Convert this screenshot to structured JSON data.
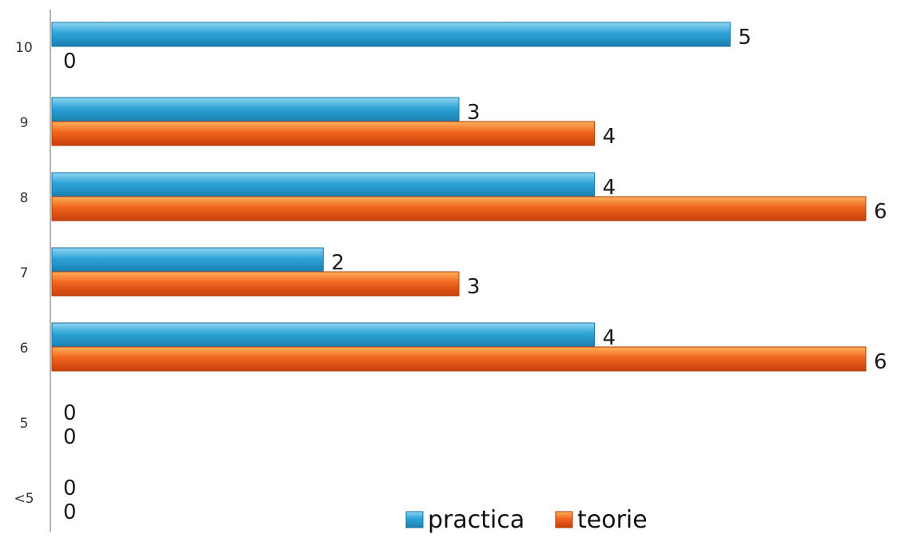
{
  "chart_data": {
    "type": "bar",
    "orientation": "horizontal",
    "categories": [
      "10",
      "9",
      "8",
      "7",
      "6",
      "5",
      "<5"
    ],
    "series": [
      {
        "name": "practica",
        "values": [
          5,
          3,
          4,
          2,
          4,
          0,
          0
        ],
        "color": "#2ea3d6"
      },
      {
        "name": "teorie",
        "values": [
          0,
          4,
          6,
          3,
          6,
          0,
          0
        ],
        "color": "#f0641e"
      }
    ],
    "xlim": [
      0,
      6
    ],
    "grid": false,
    "legend_position": "bottom-right",
    "data_labels": true
  }
}
